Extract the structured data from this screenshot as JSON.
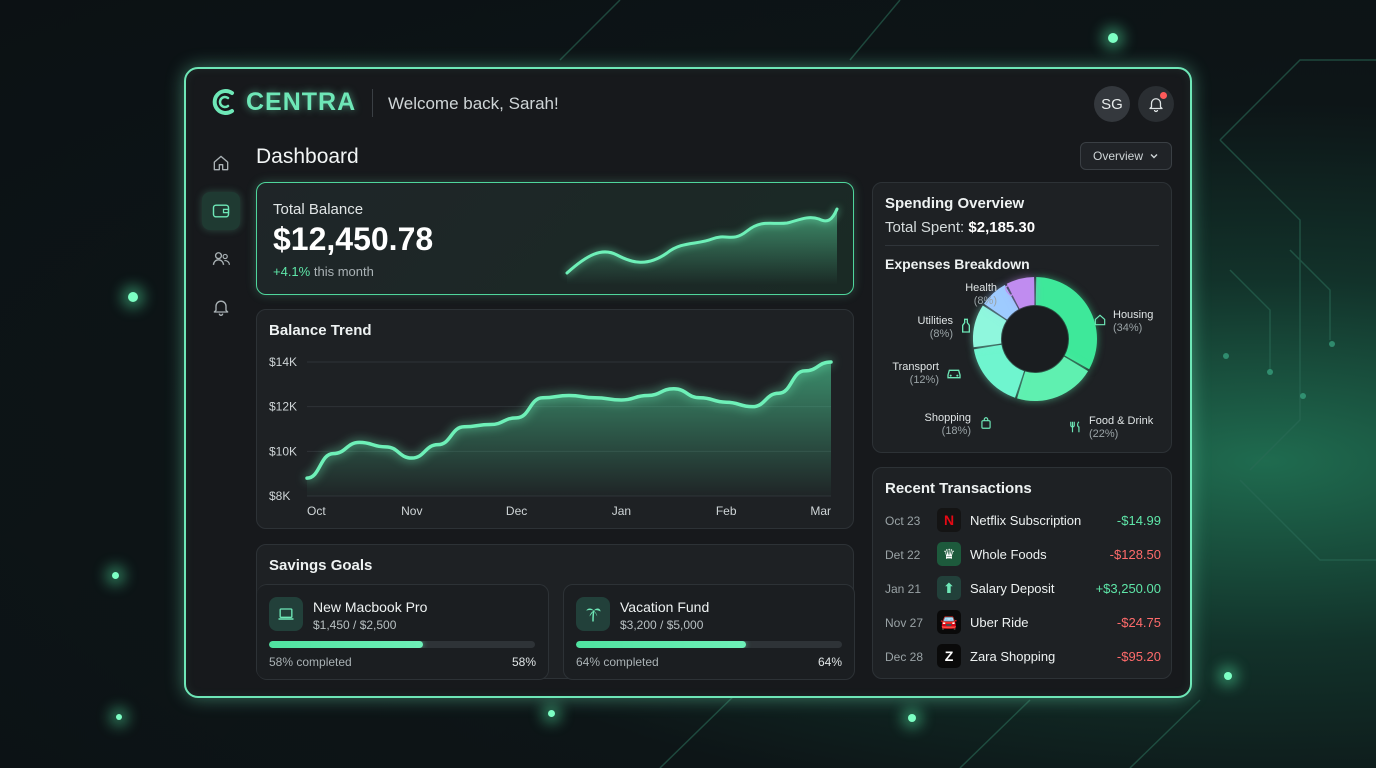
{
  "app": {
    "brand": "CENTRA",
    "welcome": "Welcome back, Sarah!",
    "user_initials": "SG"
  },
  "nav": [
    {
      "icon": "home-icon",
      "active": false
    },
    {
      "icon": "wallet-icon",
      "active": true
    },
    {
      "icon": "users-icon",
      "active": false
    },
    {
      "icon": "bell-icon",
      "active": false
    }
  ],
  "page": {
    "title": "Dashboard",
    "view_select": "Overview"
  },
  "balance": {
    "label": "Total Balance",
    "value": "$12,450.78",
    "change": "+4.1%",
    "change_suffix": "this month"
  },
  "trend": {
    "title": "Balance Trend"
  },
  "chart_data": {
    "type": "area",
    "categories": [
      "Oct",
      "Nov",
      "Dec",
      "Jan",
      "Feb",
      "Mar"
    ],
    "x": [
      0,
      0.25,
      0.5,
      0.75,
      1,
      1.25,
      1.5,
      1.75,
      2,
      2.25,
      2.5,
      2.75,
      3,
      3.25,
      3.5,
      3.75,
      4,
      4.25,
      4.5,
      4.75,
      5
    ],
    "values": [
      8.8,
      9.9,
      10.4,
      10.2,
      9.7,
      10.3,
      11.1,
      11.2,
      11.5,
      12.4,
      12.5,
      12.4,
      12.3,
      12.5,
      12.8,
      12.4,
      12.2,
      12.0,
      12.6,
      13.6,
      14.0
    ],
    "yticks": [
      "$14K",
      "$12K",
      "$10K",
      "$8K"
    ],
    "ytick_values": [
      14,
      12,
      10,
      8
    ],
    "ylim": [
      8,
      14
    ],
    "ylabel": "",
    "xlabel": "",
    "grid": true,
    "color": "#5ee6a8"
  },
  "savings": {
    "title": "Savings Goals",
    "goals": [
      {
        "icon": "laptop-icon",
        "name": "New Macbook Pro",
        "amount": "$1,450 / $2,500",
        "progress": 0.58,
        "footer": "58% completed",
        "pct": "58%"
      },
      {
        "icon": "palm-tree-icon",
        "name": "Vacation Fund",
        "amount": "$3,200 / $5,000",
        "progress": 0.64,
        "footer": "64% completed",
        "pct": "64%"
      }
    ]
  },
  "spending": {
    "title": "Spending Overview",
    "total_label": "Total Spent:",
    "total_value": "$2,185.30",
    "breakdown_title": "Expenses Breakdown",
    "categories": [
      {
        "name": "Housing",
        "pct": "(34%)",
        "value": 34,
        "color": "#3ee89a",
        "icon": "house-icon"
      },
      {
        "name": "Food & Drink",
        "pct": "(22%)",
        "value": 22,
        "color": "#5ff0b0",
        "icon": "utensils-icon"
      },
      {
        "name": "Shopping",
        "pct": "(18%)",
        "value": 18,
        "color": "#6ff5cf",
        "icon": "shopping-bag-icon"
      },
      {
        "name": "Transport",
        "pct": "(12%)",
        "value": 12,
        "color": "#8ff7dd",
        "icon": "car-icon"
      },
      {
        "name": "Utilities",
        "pct": "(8%)",
        "value": 8,
        "color": "#9ecbff",
        "icon": "bottle-icon"
      },
      {
        "name": "Health",
        "pct": "(8%)",
        "value": 8,
        "color": "#c08cf0",
        "icon": "heart-icon"
      }
    ]
  },
  "transactions": {
    "title": "Recent Transactions",
    "items": [
      {
        "date": "Oct 23",
        "icon": "netflix-icon",
        "glyph": "N",
        "name": "Netflix Subscription",
        "amount": "-$14.99",
        "positive": true,
        "bg": "#141414",
        "fg": "#e50914"
      },
      {
        "date": "Det 22",
        "icon": "whole-foods-icon",
        "glyph": "♛",
        "name": "Whole Foods",
        "amount": "-$128.50",
        "positive": false,
        "bg": "#1d5a3c",
        "fg": "#ffffff"
      },
      {
        "date": "Jan 21",
        "icon": "salary-icon",
        "glyph": "⬆",
        "name": "Salary Deposit",
        "amount": "+$3,250.00",
        "positive": true,
        "bg": "#22403a",
        "fg": "#6ee7b7"
      },
      {
        "date": "Nov 27",
        "icon": "uber-icon",
        "glyph": "🚘",
        "name": "Uber Ride",
        "amount": "-$24.75",
        "positive": false,
        "bg": "#0a0a0a",
        "fg": "#ffffff"
      },
      {
        "date": "Dec 28",
        "icon": "zara-icon",
        "glyph": "Z",
        "name": "Zara Shopping",
        "amount": "-$95.20",
        "positive": false,
        "bg": "#0a0a0a",
        "fg": "#ffffff"
      }
    ]
  }
}
